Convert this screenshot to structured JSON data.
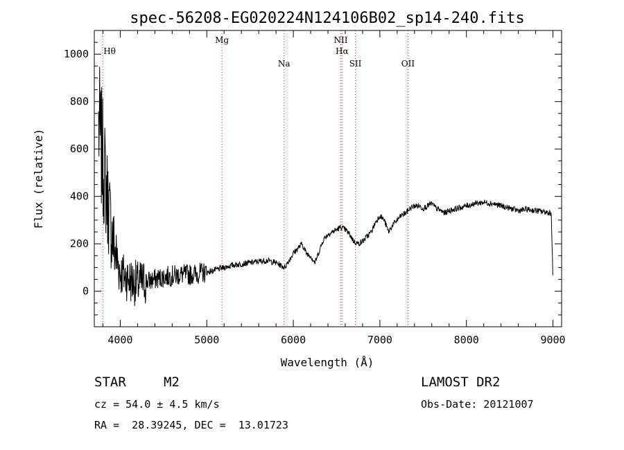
{
  "chart_data": {
    "type": "line",
    "title": "spec-56208-EG020224N124106B02_sp14-240.fits",
    "xlabel": "Wavelength (Å)",
    "ylabel": "Flux (relative)",
    "xlim": [
      3700,
      9100
    ],
    "ylim": [
      -150,
      1100
    ],
    "x_ticks": [
      "4000",
      "5000",
      "6000",
      "7000",
      "8000",
      "9000"
    ],
    "y_ticks": [
      "0",
      "200",
      "400",
      "600",
      "800",
      "1000"
    ],
    "x_tick_values": [
      4000,
      5000,
      6000,
      7000,
      8000,
      9000
    ],
    "y_tick_values": [
      0,
      200,
      400,
      600,
      800,
      1000
    ],
    "grid": false,
    "spectral_lines": [
      {
        "label": "Hθ",
        "wavelength": 3798,
        "color": "#ff0000"
      },
      {
        "label": "Mg",
        "wavelength": 5175,
        "color": "#ff0000"
      },
      {
        "label": "Na",
        "wavelength": 5893,
        "color": "#ff0000"
      },
      {
        "label": "NII",
        "wavelength": 6548,
        "color": "#ff0000"
      },
      {
        "label": "Hα",
        "wavelength": 6563,
        "color": "#ff0000"
      },
      {
        "label": "SII",
        "wavelength": 6717,
        "color": "#ff0000"
      },
      {
        "label": "OII",
        "wavelength": 7325,
        "color": "#ff0000"
      }
    ],
    "series": [
      {
        "color": "#000000",
        "x": [
          3750,
          3800,
          3850,
          3900,
          3950,
          4000,
          4100,
          4200,
          4300,
          4400,
          4500,
          4600,
          4700,
          4800,
          4900,
          5000,
          5100,
          5200,
          5300,
          5400,
          5500,
          5600,
          5700,
          5800,
          5850,
          5900,
          5950,
          6000,
          6050,
          6100,
          6150,
          6200,
          6250,
          6300,
          6350,
          6400,
          6450,
          6500,
          6550,
          6600,
          6650,
          6700,
          6750,
          6800,
          6850,
          6900,
          6950,
          7000,
          7050,
          7100,
          7150,
          7200,
          7250,
          7300,
          7350,
          7400,
          7450,
          7500,
          7550,
          7600,
          7650,
          7700,
          7750,
          7800,
          7900,
          8000,
          8100,
          8200,
          8300,
          8400,
          8500,
          8600,
          8700,
          8800,
          8900,
          8980,
          9000
        ],
        "y": [
          700,
          550,
          400,
          250,
          150,
          80,
          50,
          30,
          40,
          50,
          60,
          65,
          70,
          70,
          75,
          80,
          90,
          100,
          110,
          115,
          120,
          125,
          130,
          120,
          110,
          100,
          130,
          160,
          180,
          200,
          160,
          150,
          120,
          170,
          220,
          240,
          250,
          260,
          270,
          260,
          240,
          210,
          200,
          210,
          230,
          250,
          290,
          320,
          300,
          250,
          280,
          300,
          320,
          330,
          350,
          360,
          360,
          350,
          360,
          370,
          350,
          340,
          330,
          340,
          350,
          360,
          370,
          375,
          370,
          360,
          350,
          340,
          345,
          340,
          335,
          330,
          50
        ]
      }
    ]
  },
  "footer": {
    "object_type": "STAR",
    "subclass": "M2",
    "survey": "LAMOST DR2",
    "cz": "cz = 54.0 ± 4.5 km/s",
    "obs_date": "Obs-Date: 20121007",
    "coords": "RA =  28.39245, DEC =  13.01723"
  }
}
